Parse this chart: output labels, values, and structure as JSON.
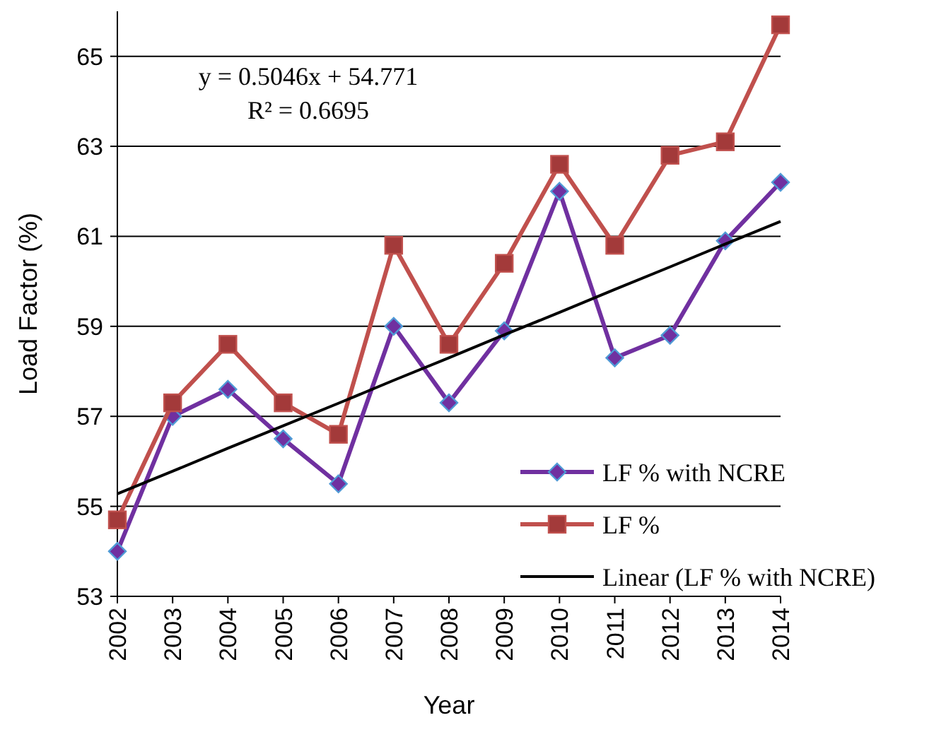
{
  "chart_data": {
    "type": "line",
    "xlabel": "Year",
    "ylabel": "Load Factor (%)",
    "categories": [
      "2002",
      "2003",
      "2004",
      "2005",
      "2006",
      "2007",
      "2008",
      "2009",
      "2010",
      "2011",
      "2012",
      "2013",
      "2014"
    ],
    "series": [
      {
        "name": "LF % with NCRE",
        "color": "#7030a0",
        "marker": "diamond",
        "values": [
          54.0,
          57.0,
          57.6,
          56.5,
          55.5,
          59.0,
          57.3,
          58.9,
          62.0,
          58.3,
          58.8,
          60.9,
          62.2
        ]
      },
      {
        "name": "LF %",
        "color": "#c0504d",
        "marker": "square",
        "values": [
          54.7,
          57.3,
          58.6,
          57.3,
          56.6,
          60.8,
          58.6,
          60.4,
          62.6,
          60.8,
          62.8,
          63.1,
          65.7
        ]
      },
      {
        "name": "Linear (LF % with NCRE)",
        "color": "#000000",
        "marker": "none",
        "values": [
          55.28,
          55.78,
          56.29,
          56.79,
          57.29,
          57.8,
          58.3,
          58.81,
          59.31,
          59.82,
          60.32,
          60.83,
          61.33
        ]
      }
    ],
    "ylim": [
      53,
      66
    ],
    "yticks": [
      53,
      55,
      57,
      59,
      61,
      63,
      65
    ],
    "grid": "y",
    "legend": "bottom right",
    "annotations": [
      "y = 0.5046x + 54.771",
      "R² = 0.6695"
    ]
  }
}
